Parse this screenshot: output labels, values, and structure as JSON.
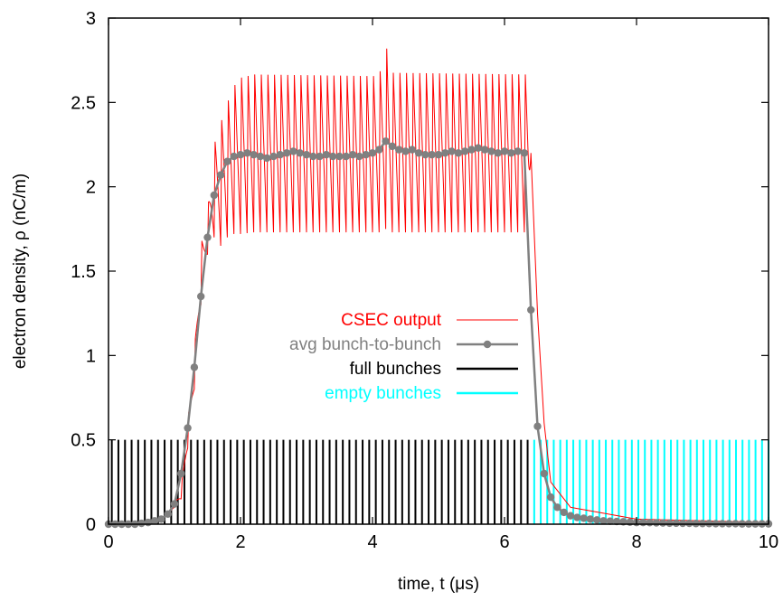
{
  "chart_data": {
    "type": "line",
    "title": "",
    "xlabel": "time, t (μs)",
    "ylabel": "electron density, ρ (nC/m)",
    "xlim": [
      0,
      10
    ],
    "ylim": [
      0,
      3
    ],
    "grid": false,
    "legend_position": "center-right",
    "x_ticks": [
      0,
      2,
      4,
      6,
      8,
      10
    ],
    "x_tick_labels": [
      "0",
      "2",
      "4",
      "6",
      "8",
      "10"
    ],
    "y_ticks": [
      0,
      0.5,
      1,
      1.5,
      2,
      2.5,
      3
    ],
    "y_tick_labels": [
      "0",
      "0.5",
      "1",
      "1.5",
      "2",
      "2.5",
      "3"
    ],
    "series": [
      {
        "name": "CSEC output",
        "color": "#ff0000",
        "style": "line",
        "note_values": "oscillation between min and max envelope at each bunch",
        "envelope_x": [
          0.0,
          0.6,
          0.9,
          1.1,
          1.2,
          1.3,
          1.4,
          1.5,
          1.6,
          1.7,
          1.8,
          1.9,
          2.0,
          2.2,
          4.1,
          4.2,
          4.3,
          6.35,
          6.4,
          6.5,
          6.6,
          6.7,
          7.0,
          8.0,
          10.0
        ],
        "envelope_max": [
          0.0,
          0.01,
          0.05,
          0.2,
          0.6,
          1.0,
          1.65,
          1.85,
          2.25,
          2.38,
          2.5,
          2.6,
          2.65,
          2.67,
          2.66,
          2.85,
          2.68,
          2.67,
          2.2,
          1.25,
          0.6,
          0.25,
          0.1,
          0.03,
          0.01
        ],
        "envelope_min": [
          0.0,
          0.01,
          0.05,
          0.15,
          0.45,
          0.8,
          1.3,
          1.6,
          1.7,
          1.65,
          1.7,
          1.72,
          1.72,
          1.73,
          1.73,
          1.75,
          1.73,
          1.73,
          2.2,
          1.25,
          0.6,
          0.25,
          0.1,
          0.03,
          0.01
        ]
      },
      {
        "name": "avg bunch-to-bunch",
        "color": "#808080",
        "style": "line-markers",
        "x": [
          0.0,
          0.1,
          0.2,
          0.3,
          0.4,
          0.5,
          0.6,
          0.7,
          0.8,
          0.9,
          1.0,
          1.1,
          1.2,
          1.3,
          1.4,
          1.5,
          1.6,
          1.7,
          1.8,
          1.9,
          2.0,
          2.1,
          2.2,
          2.3,
          2.4,
          2.5,
          2.6,
          2.7,
          2.8,
          2.9,
          3.0,
          3.1,
          3.2,
          3.3,
          3.4,
          3.5,
          3.6,
          3.7,
          3.8,
          3.9,
          4.0,
          4.1,
          4.2,
          4.3,
          4.4,
          4.5,
          4.6,
          4.7,
          4.8,
          4.9,
          5.0,
          5.1,
          5.2,
          5.3,
          5.4,
          5.5,
          5.6,
          5.7,
          5.8,
          5.9,
          6.0,
          6.1,
          6.2,
          6.3,
          6.4,
          6.5,
          6.6,
          6.7,
          6.8,
          6.9,
          7.0,
          7.1,
          7.2,
          7.3,
          7.4,
          7.5,
          7.6,
          7.7,
          7.8,
          7.9,
          8.0,
          8.1,
          8.2,
          8.3,
          8.4,
          8.5,
          8.6,
          8.7,
          8.8,
          8.9,
          9.0,
          9.1,
          9.2,
          9.3,
          9.4,
          9.5,
          9.6,
          9.7,
          9.8,
          9.9,
          10.0
        ],
        "y": [
          0.0,
          0.0,
          0.0,
          0.0,
          0.0,
          0.005,
          0.01,
          0.02,
          0.03,
          0.06,
          0.12,
          0.3,
          0.57,
          0.93,
          1.35,
          1.7,
          1.95,
          2.07,
          2.15,
          2.18,
          2.19,
          2.2,
          2.19,
          2.18,
          2.17,
          2.18,
          2.19,
          2.2,
          2.21,
          2.2,
          2.19,
          2.18,
          2.18,
          2.19,
          2.18,
          2.18,
          2.18,
          2.19,
          2.18,
          2.19,
          2.2,
          2.22,
          2.27,
          2.24,
          2.22,
          2.21,
          2.22,
          2.2,
          2.19,
          2.19,
          2.19,
          2.2,
          2.21,
          2.2,
          2.21,
          2.22,
          2.23,
          2.22,
          2.21,
          2.2,
          2.21,
          2.2,
          2.21,
          2.2,
          1.27,
          0.58,
          0.3,
          0.16,
          0.1,
          0.07,
          0.05,
          0.04,
          0.035,
          0.03,
          0.025,
          0.02,
          0.018,
          0.016,
          0.014,
          0.012,
          0.01,
          0.01,
          0.009,
          0.008,
          0.007,
          0.006,
          0.006,
          0.005,
          0.005,
          0.004,
          0.004,
          0.004,
          0.003,
          0.003,
          0.003,
          0.003,
          0.002,
          0.002,
          0.002,
          0.002,
          0.002
        ]
      },
      {
        "name": "full bunches",
        "color": "#000000",
        "style": "impulses",
        "height": 0.5,
        "x_start": 0.05,
        "x_end": 6.35,
        "count": 64
      },
      {
        "name": "empty bunches",
        "color": "#00ffff",
        "style": "impulses",
        "height": 0.5,
        "x_start": 6.45,
        "x_end": 10.0,
        "count": 37
      }
    ]
  }
}
